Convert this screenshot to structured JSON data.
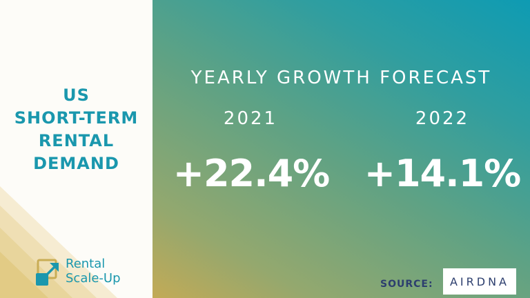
{
  "headline": {
    "lines": [
      "US",
      "SHORT-TERM",
      "RENTAL",
      "DEMAND"
    ],
    "color": "#1a97ad"
  },
  "logo": {
    "line1": "Rental",
    "line2": "Scale-Up",
    "icon": "arrow-box-icon",
    "color": "#1a97ad"
  },
  "forecast": {
    "title": "YEARLY GROWTH FORECAST",
    "items": [
      {
        "year": "2021",
        "value": "+22.4%"
      },
      {
        "year": "2022",
        "value": "+14.1%"
      }
    ]
  },
  "source": {
    "label": "SOURCE:",
    "logo_text": "AIRDNA"
  }
}
